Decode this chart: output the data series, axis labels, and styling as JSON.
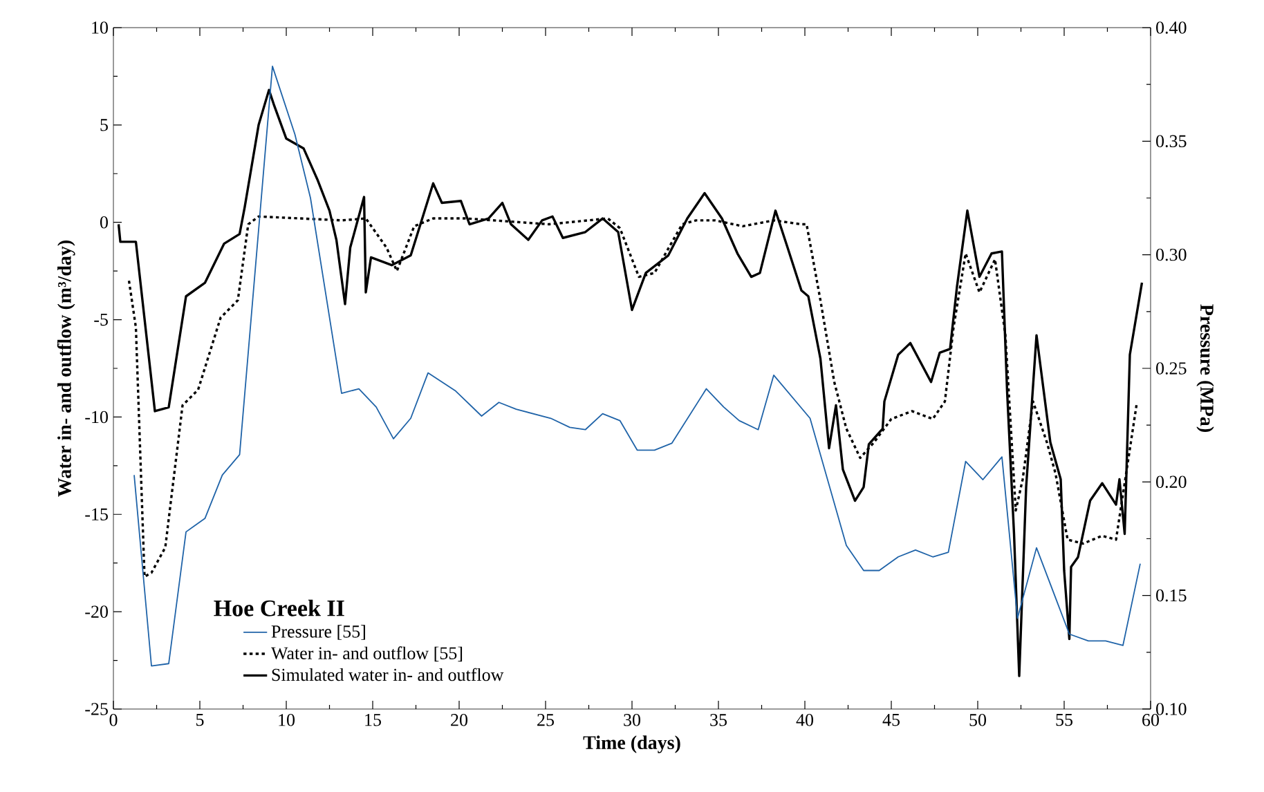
{
  "chart_data": {
    "type": "line",
    "xlabel": "Time (days)",
    "ylabel": "Water in- and outflow (m³/day)",
    "y2label": "Pressure (MPa)",
    "legend_title": "Hoe Creek II",
    "xlim": [
      0,
      60
    ],
    "xticks": [
      0,
      5,
      10,
      15,
      20,
      25,
      30,
      35,
      40,
      45,
      50,
      55,
      60
    ],
    "ylim": [
      -25,
      10
    ],
    "yticks": [
      -25,
      -20,
      -15,
      -10,
      -5,
      0,
      5,
      10
    ],
    "y2lim": [
      0.1,
      0.4
    ],
    "y2ticks": [
      {
        "value": 0.1,
        "label": "0.10"
      },
      {
        "value": 0.15,
        "label": "0.15"
      },
      {
        "value": 0.2,
        "label": "0.20"
      },
      {
        "value": 0.25,
        "label": "0.25"
      },
      {
        "value": 0.3,
        "label": "0.30"
      },
      {
        "value": 0.35,
        "label": "0.35"
      },
      {
        "value": 0.4,
        "label": "0.40"
      }
    ],
    "grid": false,
    "legend": "bottom left",
    "marker": "none",
    "series": [
      {
        "name": "Pressure [55]",
        "color": "#1f63a8",
        "axis": "y2",
        "line_style": "solid",
        "x": [
          1.2,
          2.2,
          3.2,
          4.2,
          5.3,
          6.3,
          7.3,
          9.2,
          10.5,
          11.4,
          13.2,
          14.2,
          15.2,
          16.2,
          17.2,
          18.2,
          19.8,
          21.3,
          22.3,
          23.3,
          25.3,
          26.4,
          27.3,
          28.3,
          29.3,
          30.3,
          31.3,
          32.3,
          34.3,
          35.3,
          36.2,
          37.3,
          38.2,
          40.3,
          42.4,
          43.4,
          44.3,
          45.4,
          46.4,
          47.4,
          48.3,
          49.3,
          50.3,
          51.4,
          52.3,
          53.4,
          55.3,
          56.4,
          57.4,
          58.4,
          59.4
        ],
        "values": [
          0.203,
          0.119,
          0.12,
          0.178,
          0.184,
          0.203,
          0.212,
          0.383,
          0.353,
          0.325,
          0.239,
          0.241,
          0.233,
          0.219,
          0.228,
          0.248,
          0.24,
          0.229,
          0.235,
          0.232,
          0.228,
          0.224,
          0.223,
          0.23,
          0.227,
          0.214,
          0.214,
          0.217,
          0.241,
          0.233,
          0.227,
          0.223,
          0.247,
          0.228,
          0.172,
          0.161,
          0.161,
          0.167,
          0.17,
          0.167,
          0.169,
          0.209,
          0.201,
          0.211,
          0.14,
          0.171,
          0.133,
          0.13,
          0.13,
          0.128,
          0.164
        ]
      },
      {
        "name": "Water in- and outflow [55]",
        "color": "#000000",
        "axis": "y",
        "line_style": "dotted",
        "x": [
          0.9,
          1.3,
          1.8,
          2.2,
          3.0,
          4.0,
          4.9,
          6.2,
          7.2,
          7.8,
          8.4,
          13.2,
          14.6,
          15.8,
          16.4,
          17.4,
          18.5,
          20.4,
          25.2,
          28.6,
          29.3,
          30.4,
          31.3,
          32.9,
          33.7,
          34.8,
          36.4,
          38.2,
          39.8,
          40.1,
          40.9,
          41.7,
          42.4,
          43.2,
          44.0,
          45.0,
          46.2,
          47.4,
          48.1,
          48.6,
          49.3,
          50.1,
          51.0,
          51.6,
          52.2,
          52.6,
          53.2,
          54.0,
          54.5,
          55.2,
          56.1,
          57.2,
          58.0,
          58.5,
          59.2
        ],
        "values": [
          -3.0,
          -5.4,
          -18.2,
          -18.0,
          -16.7,
          -9.4,
          -8.6,
          -4.9,
          -4.0,
          -0.1,
          0.3,
          0.1,
          0.2,
          -1.3,
          -2.5,
          -0.2,
          0.2,
          0.2,
          -0.1,
          0.2,
          -0.3,
          -2.8,
          -2.6,
          -0.1,
          0.1,
          0.1,
          -0.2,
          0.1,
          -0.1,
          -0.1,
          -4.0,
          -8.2,
          -10.6,
          -12.1,
          -11.3,
          -10.1,
          -9.7,
          -10.1,
          -9.2,
          -5.4,
          -1.6,
          -3.6,
          -1.9,
          -5.8,
          -14.8,
          -13.2,
          -9.2,
          -11.3,
          -12.9,
          -16.3,
          -16.5,
          -16.1,
          -16.3,
          -13.4,
          -9.3
        ]
      },
      {
        "name": "Simulated water in- and outflow",
        "color": "#000000",
        "axis": "y",
        "line_style": "solid",
        "x": [
          0.3,
          0.4,
          1.3,
          2.4,
          3.2,
          4.2,
          5.3,
          6.4,
          7.3,
          7.6,
          8.4,
          9.0,
          9.3,
          10.0,
          11.0,
          11.8,
          12.5,
          12.9,
          13.4,
          13.7,
          14.5,
          14.6,
          14.9,
          16.1,
          17.2,
          18.5,
          19.0,
          20.1,
          20.6,
          21.7,
          22.5,
          23.0,
          24.0,
          24.8,
          25.4,
          26.0,
          27.3,
          28.3,
          29.2,
          30.0,
          30.8,
          32.1,
          33.2,
          34.2,
          35.2,
          36.1,
          36.9,
          37.4,
          38.3,
          39.0,
          39.8,
          40.2,
          40.9,
          41.4,
          41.8,
          42.2,
          42.9,
          43.4,
          43.7,
          44.5,
          44.6,
          45.4,
          46.1,
          47.3,
          47.8,
          48.4,
          48.8,
          49.4,
          50.1,
          50.8,
          51.4,
          51.7,
          52.1,
          52.4,
          52.8,
          53.4,
          54.2,
          54.8,
          55.0,
          55.3,
          55.4,
          55.8,
          56.5,
          57.2,
          58.0,
          58.2,
          58.5,
          58.8,
          59.5
        ],
        "values": [
          -0.1,
          -1.0,
          -1.0,
          -9.7,
          -9.5,
          -3.8,
          -3.1,
          -1.1,
          -0.6,
          0.8,
          5.0,
          6.8,
          6.0,
          4.3,
          3.8,
          2.2,
          0.6,
          -0.9,
          -4.2,
          -1.3,
          1.3,
          -3.6,
          -1.8,
          -2.2,
          -1.7,
          2.0,
          1.0,
          1.1,
          -0.1,
          0.2,
          1.0,
          -0.1,
          -0.9,
          0.1,
          0.3,
          -0.8,
          -0.5,
          0.2,
          -0.5,
          -4.5,
          -2.6,
          -1.7,
          0.2,
          1.5,
          0.2,
          -1.6,
          -2.8,
          -2.6,
          0.6,
          -1.3,
          -3.5,
          -3.8,
          -7.0,
          -11.6,
          -9.4,
          -12.7,
          -14.3,
          -13.6,
          -11.4,
          -10.6,
          -9.2,
          -6.8,
          -6.2,
          -8.2,
          -6.7,
          -6.5,
          -3.3,
          0.6,
          -2.8,
          -1.6,
          -1.5,
          -8.7,
          -16.0,
          -23.3,
          -13.6,
          -5.8,
          -11.3,
          -13.2,
          -17.9,
          -21.4,
          -17.7,
          -17.2,
          -14.3,
          -13.4,
          -14.5,
          -13.2,
          -16.0,
          -6.8,
          -3.1
        ]
      }
    ]
  }
}
